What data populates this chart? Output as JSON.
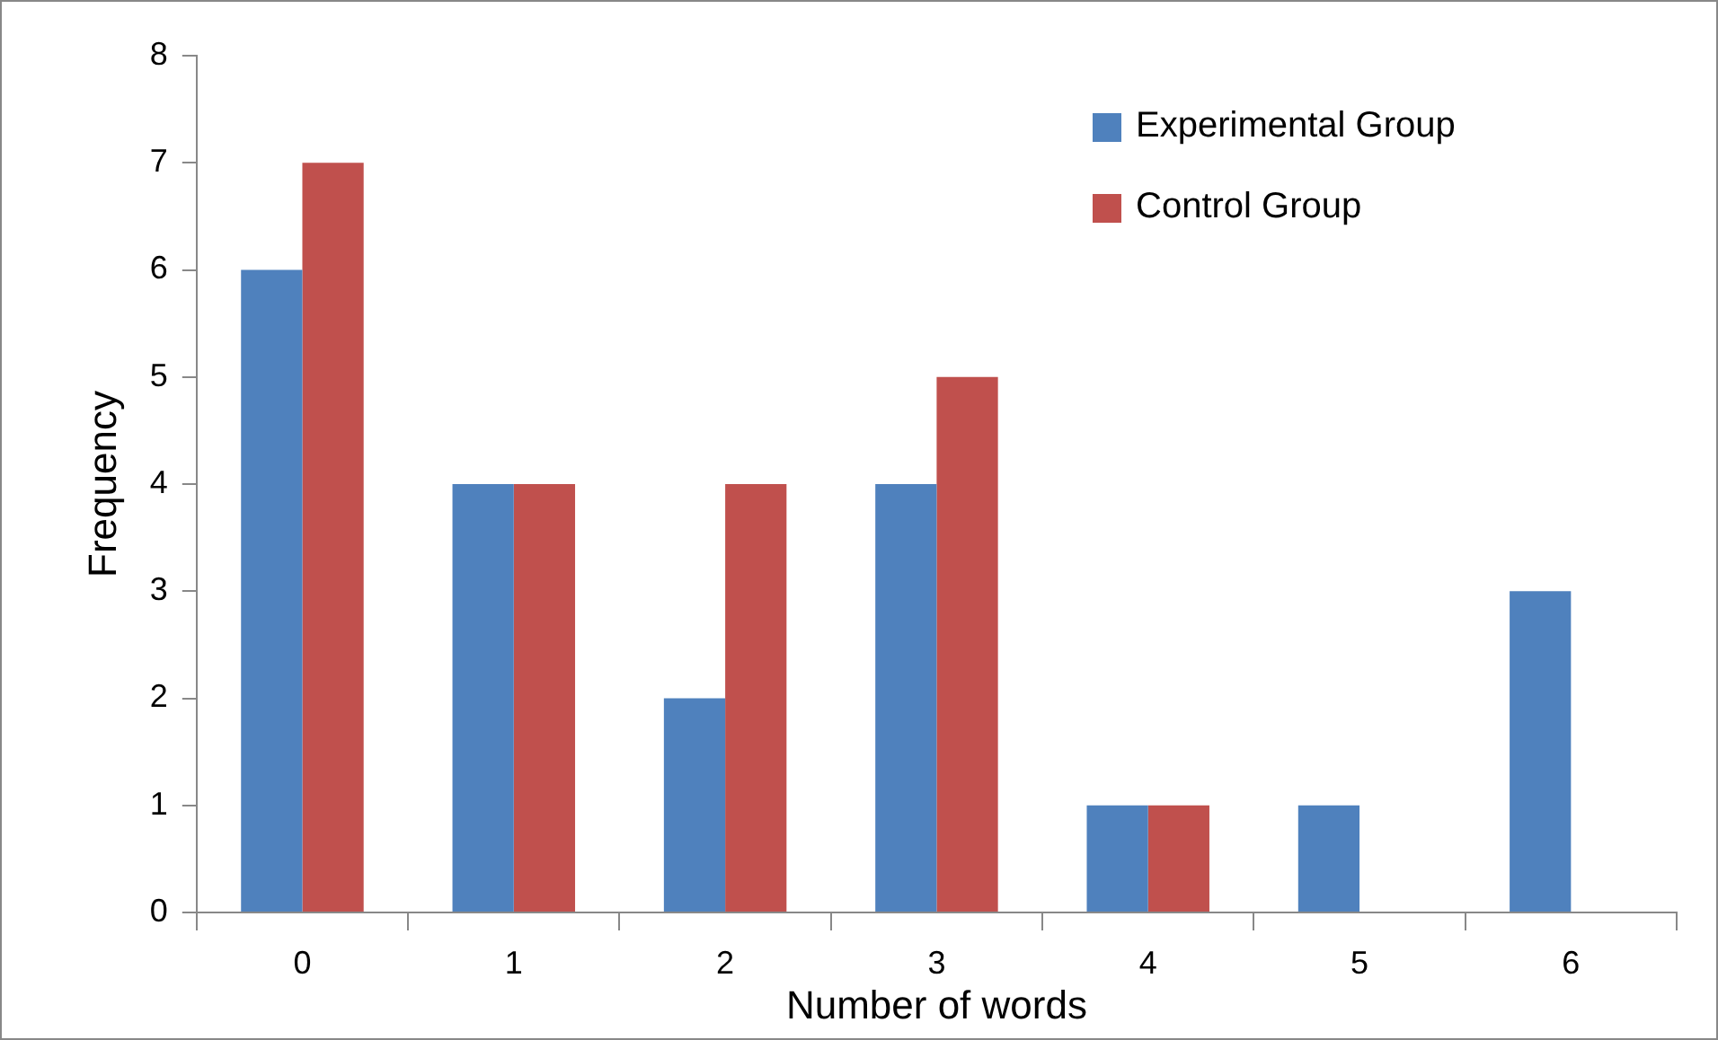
{
  "chart_data": {
    "type": "bar",
    "xlabel": "Number of words",
    "ylabel": "Frequency",
    "categories": [
      "0",
      "1",
      "2",
      "3",
      "4",
      "5",
      "6"
    ],
    "series": [
      {
        "name": "Experimental Group",
        "color": "#4f81bd",
        "values": [
          6,
          4,
          2,
          4,
          1,
          1,
          3
        ]
      },
      {
        "name": "Control Group",
        "color": "#c0504d",
        "values": [
          7,
          4,
          4,
          5,
          1,
          0,
          0
        ]
      }
    ],
    "ylim": [
      0,
      8
    ],
    "yticks": [
      0,
      1,
      2,
      3,
      4,
      5,
      6,
      7,
      8
    ],
    "grid": false,
    "legend": "top right"
  }
}
